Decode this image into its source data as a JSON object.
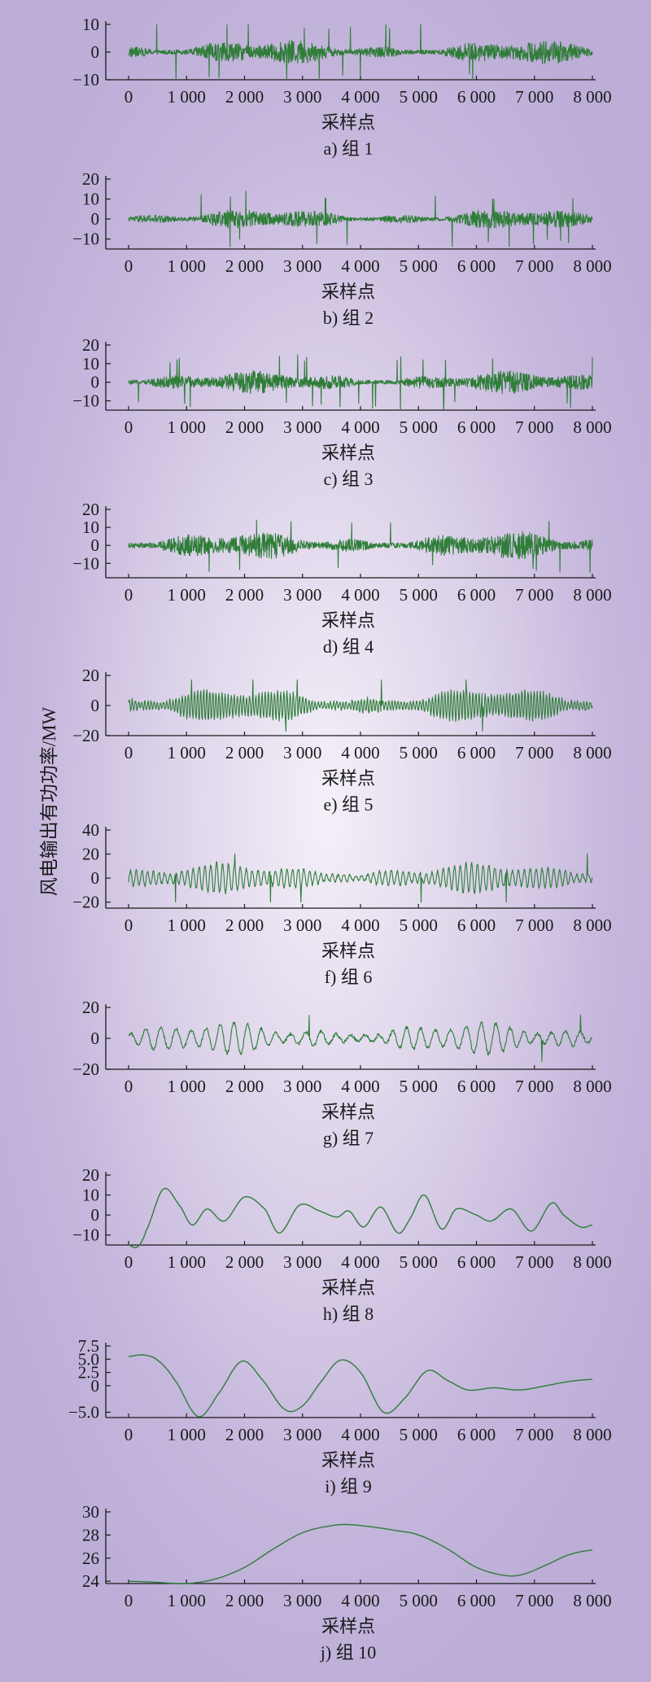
{
  "ylabel": "风电输出有功功率/MW",
  "xlabel": "采样点",
  "colors": {
    "line": "#2e7d38",
    "axis": "#1a1a1a"
  },
  "chart_data": [
    {
      "type": "line",
      "caption": "a) 组 1",
      "xlabel": "采样点",
      "xlim": [
        0,
        8000
      ],
      "xticks": [
        "0",
        "1 000",
        "2 000",
        "3 000",
        "4 000",
        "5 000",
        "6 000",
        "7 000",
        "8 000"
      ],
      "ylim": [
        -10,
        10
      ],
      "yticks": [
        "10",
        "0",
        "−10"
      ],
      "ytick_values": [
        10,
        0,
        -10
      ],
      "signal": {
        "amplitude": 4.0,
        "spike": 11,
        "cycles": 2000,
        "kind": "noise"
      }
    },
    {
      "type": "line",
      "caption": "b) 组 2",
      "xlabel": "采样点",
      "xlim": [
        0,
        8000
      ],
      "xticks": [
        "0",
        "1 000",
        "2 000",
        "3 000",
        "4 000",
        "5 000",
        "6 000",
        "7 000",
        "8 000"
      ],
      "ylim": [
        -15,
        20
      ],
      "yticks": [
        "20",
        "10",
        "0",
        "−10"
      ],
      "ytick_values": [
        20,
        10,
        0,
        -10
      ],
      "signal": {
        "amplitude": 4.5,
        "spike": 14,
        "cycles": 1400,
        "kind": "noise"
      }
    },
    {
      "type": "line",
      "caption": "c) 组 3",
      "xlabel": "采样点",
      "xlim": [
        0,
        8000
      ],
      "xticks": [
        "0",
        "1 000",
        "2 000",
        "3 000",
        "4 000",
        "5 000",
        "6 000",
        "7 000",
        "8 000"
      ],
      "ylim": [
        -15,
        20
      ],
      "yticks": [
        "20",
        "10",
        "0",
        "−10"
      ],
      "ytick_values": [
        20,
        10,
        0,
        -10
      ],
      "signal": {
        "amplitude": 5.5,
        "spike": 15,
        "cycles": 900,
        "kind": "noise"
      }
    },
    {
      "type": "line",
      "caption": "d) 组 4",
      "xlabel": "采样点",
      "xlim": [
        0,
        8000
      ],
      "xticks": [
        "0",
        "1 000",
        "2 000",
        "3 000",
        "4 000",
        "5 000",
        "6 000",
        "7 000",
        "8 000"
      ],
      "ylim": [
        -18,
        20
      ],
      "yticks": [
        "20",
        "10",
        "0",
        "−10"
      ],
      "ytick_values": [
        20,
        10,
        0,
        -10
      ],
      "signal": {
        "amplitude": 7.0,
        "spike": 15,
        "cycles": 500,
        "kind": "noise"
      }
    },
    {
      "type": "line",
      "caption": "e) 组 5",
      "xlabel": "采样点",
      "xlim": [
        0,
        8000
      ],
      "xticks": [
        "0",
        "1 000",
        "2 000",
        "3 000",
        "4 000",
        "5 000",
        "6 000",
        "7 000",
        "8 000"
      ],
      "ylim": [
        -20,
        20
      ],
      "yticks": [
        "20",
        "0",
        "−20"
      ],
      "ytick_values": [
        20,
        0,
        -20
      ],
      "signal": {
        "amplitude": 10,
        "spike": 17,
        "cycles": 150,
        "kind": "osc"
      }
    },
    {
      "type": "line",
      "caption": "f) 组 6",
      "xlabel": "采样点",
      "xlim": [
        0,
        8000
      ],
      "xticks": [
        "0",
        "1 000",
        "2 000",
        "3 000",
        "4 000",
        "5 000",
        "6 000",
        "7 000",
        "8 000"
      ],
      "ylim": [
        -25,
        40
      ],
      "yticks": [
        "40",
        "20",
        "0",
        "−20"
      ],
      "ytick_values": [
        40,
        20,
        0,
        -20
      ],
      "signal": {
        "amplitude": 11,
        "spike": 20,
        "cycles": 80,
        "kind": "osc"
      }
    },
    {
      "type": "line",
      "caption": "g) 组 7",
      "xlabel": "采样点",
      "xlim": [
        0,
        8000
      ],
      "xticks": [
        "0",
        "1 000",
        "2 000",
        "3 000",
        "4 000",
        "5 000",
        "6 000",
        "7 000",
        "8 000"
      ],
      "ylim": [
        -20,
        20
      ],
      "yticks": [
        "20",
        "0",
        "−20"
      ],
      "ytick_values": [
        20,
        0,
        -20
      ],
      "signal": {
        "amplitude": 9,
        "spike": 15,
        "cycles": 32,
        "kind": "osc"
      }
    },
    {
      "type": "line",
      "caption": "h) 组 8",
      "xlabel": "采样点",
      "xlim": [
        0,
        8000
      ],
      "xticks": [
        "0",
        "1 000",
        "2 000",
        "3 000",
        "4 000",
        "5 000",
        "6 000",
        "7 000",
        "8 000"
      ],
      "ylim": [
        -15,
        20
      ],
      "yticks": [
        "20",
        "10",
        "0",
        "−10"
      ],
      "ytick_values": [
        20,
        10,
        0,
        -10
      ],
      "series": [
        {
          "x": [
            0,
            150,
            300,
            600,
            900,
            1100,
            1350,
            1650,
            2000,
            2350,
            2600,
            2950,
            3300,
            3600,
            3800,
            4050,
            4350,
            4650,
            4850,
            5100,
            5400,
            5650,
            6000,
            6250,
            6600,
            6950,
            7300,
            7500,
            7800,
            8000
          ],
          "y": [
            -15,
            -16,
            -8,
            13,
            4,
            -5,
            3,
            -3,
            9,
            3,
            -9,
            5,
            2,
            -1,
            2,
            -6,
            4,
            -9,
            -2,
            10,
            -7,
            3,
            0,
            -3,
            3,
            -8,
            6,
            0,
            -6,
            -5
          ]
        }
      ]
    },
    {
      "type": "line",
      "caption": "i) 组 9",
      "xlabel": "采样点",
      "xlim": [
        0,
        8000
      ],
      "xticks": [
        "0",
        "1 000",
        "2 000",
        "3 000",
        "4 000",
        "5 000",
        "6 000",
        "7 000",
        "8 000"
      ],
      "ylim": [
        -6,
        7.5
      ],
      "yticks": [
        "7.5",
        "5.0",
        "2.5",
        "0",
        "−5.0"
      ],
      "ytick_values": [
        7.5,
        5.0,
        2.5,
        0,
        -5.0
      ],
      "series": [
        {
          "x": [
            0,
            250,
            500,
            800,
            1200,
            1550,
            1950,
            2300,
            2700,
            3000,
            3300,
            3650,
            4000,
            4400,
            4750,
            5150,
            5500,
            5850,
            6300,
            6750,
            7200,
            7600,
            8000
          ],
          "y": [
            5.5,
            5.8,
            4.8,
            1.0,
            -5.8,
            -1.5,
            4.6,
            1.2,
            -4.5,
            -3.8,
            0.5,
            4.8,
            2.5,
            -5.0,
            -2.5,
            2.8,
            1.0,
            -0.8,
            -0.4,
            -0.8,
            0.0,
            0.8,
            1.2
          ]
        }
      ]
    },
    {
      "type": "line",
      "caption": "j) 组 10",
      "xlabel": "采样点",
      "xlim": [
        0,
        8000
      ],
      "xticks": [
        "0",
        "1 000",
        "2 000",
        "3 000",
        "4 000",
        "5 000",
        "6 000",
        "7 000",
        "8 000"
      ],
      "ylim": [
        23.8,
        30
      ],
      "yticks": [
        "30",
        "28",
        "26",
        "24"
      ],
      "ytick_values": [
        30,
        28,
        26,
        24
      ],
      "series": [
        {
          "x": [
            0,
            500,
            1000,
            1500,
            2000,
            2500,
            3000,
            3500,
            3800,
            4200,
            4600,
            5000,
            5500,
            6000,
            6500,
            6800,
            7200,
            7600,
            8000
          ],
          "y": [
            24.0,
            23.9,
            23.8,
            24.2,
            25.2,
            26.8,
            28.2,
            28.8,
            28.9,
            28.7,
            28.4,
            28.0,
            26.8,
            25.2,
            24.5,
            24.6,
            25.4,
            26.3,
            26.7
          ]
        }
      ]
    }
  ]
}
